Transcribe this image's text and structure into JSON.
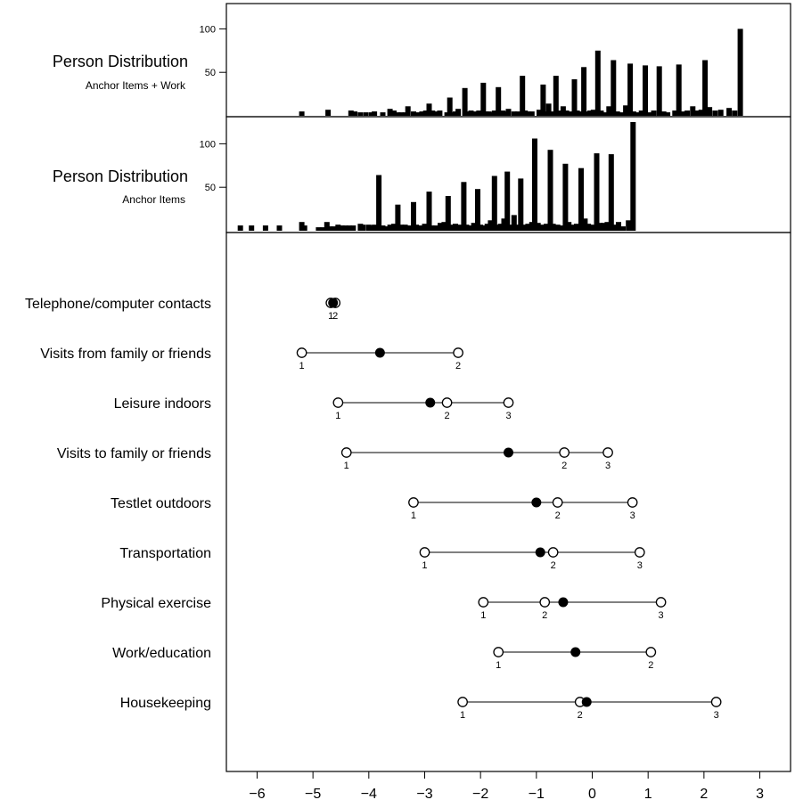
{
  "chart_data": [
    {
      "type": "bar",
      "title": "Person Distribution",
      "subtitle": "Anchor Items + Work",
      "ylim": [
        0,
        125
      ],
      "yticks": [
        50,
        100
      ],
      "series": [
        {
          "bars": [
            [
              -5.2,
              5
            ],
            [
              -4.73,
              7
            ],
            [
              -4.32,
              6
            ],
            [
              -4.25,
              5
            ],
            [
              -4.15,
              4
            ],
            [
              -4.05,
              4
            ],
            [
              -3.95,
              4
            ],
            [
              -3.9,
              5
            ],
            [
              -3.75,
              4
            ],
            [
              -3.62,
              8
            ],
            [
              -3.55,
              6
            ],
            [
              -3.48,
              4
            ],
            [
              -3.42,
              4
            ],
            [
              -3.35,
              4
            ],
            [
              -3.3,
              11
            ],
            [
              -3.2,
              5
            ],
            [
              -3.12,
              4
            ],
            [
              -3.05,
              5
            ],
            [
              -2.98,
              6
            ],
            [
              -2.92,
              14
            ],
            [
              -2.86,
              6
            ],
            [
              -2.8,
              5
            ],
            [
              -2.73,
              6
            ],
            [
              -2.6,
              4
            ],
            [
              -2.55,
              21
            ],
            [
              -2.5,
              4
            ],
            [
              -2.45,
              5
            ],
            [
              -2.4,
              8
            ],
            [
              -2.28,
              32
            ],
            [
              -2.22,
              5
            ],
            [
              -2.17,
              6
            ],
            [
              -2.1,
              5
            ],
            [
              -2.03,
              6
            ],
            [
              -1.95,
              38
            ],
            [
              -1.9,
              5
            ],
            [
              -1.85,
              5
            ],
            [
              -1.8,
              4
            ],
            [
              -1.75,
              6
            ],
            [
              -1.68,
              33
            ],
            [
              -1.6,
              6
            ],
            [
              -1.55,
              5
            ],
            [
              -1.5,
              8
            ],
            [
              -1.4,
              5
            ],
            [
              -1.33,
              5
            ],
            [
              -1.25,
              46
            ],
            [
              -1.2,
              6
            ],
            [
              -1.15,
              5
            ],
            [
              -1.08,
              5
            ],
            [
              -0.95,
              7
            ],
            [
              -0.88,
              36
            ],
            [
              -0.83,
              5
            ],
            [
              -0.78,
              14
            ],
            [
              -0.72,
              5
            ],
            [
              -0.65,
              46
            ],
            [
              -0.58,
              6
            ],
            [
              -0.52,
              11
            ],
            [
              -0.46,
              6
            ],
            [
              -0.4,
              5
            ],
            [
              -0.32,
              42
            ],
            [
              -0.27,
              6
            ],
            [
              -0.2,
              5
            ],
            [
              -0.15,
              56
            ],
            [
              -0.1,
              5
            ],
            [
              -0.04,
              6
            ],
            [
              0.02,
              7
            ],
            [
              0.1,
              75
            ],
            [
              0.16,
              6
            ],
            [
              0.22,
              4
            ],
            [
              0.3,
              11
            ],
            [
              0.38,
              64
            ],
            [
              0.45,
              5
            ],
            [
              0.52,
              4
            ],
            [
              0.6,
              12
            ],
            [
              0.68,
              60
            ],
            [
              0.74,
              5
            ],
            [
              0.8,
              4
            ],
            [
              0.88,
              6
            ],
            [
              0.95,
              58
            ],
            [
              1.02,
              4
            ],
            [
              1.1,
              6
            ],
            [
              1.2,
              57
            ],
            [
              1.28,
              5
            ],
            [
              1.35,
              4
            ],
            [
              1.48,
              6
            ],
            [
              1.55,
              59
            ],
            [
              1.62,
              5
            ],
            [
              1.7,
              6
            ],
            [
              1.8,
              11
            ],
            [
              1.88,
              6
            ],
            [
              1.95,
              7
            ],
            [
              2.02,
              64
            ],
            [
              2.1,
              10
            ],
            [
              2.2,
              6
            ],
            [
              2.3,
              7
            ],
            [
              2.45,
              9
            ],
            [
              2.55,
              6
            ],
            [
              2.65,
              100
            ]
          ]
        }
      ]
    },
    {
      "type": "bar",
      "title": "Person Distribution",
      "subtitle": "Anchor Items",
      "ylim": [
        0,
        125
      ],
      "yticks": [
        50,
        100
      ],
      "series": [
        {
          "bars": [
            [
              -6.3,
              6
            ],
            [
              -6.1,
              6
            ],
            [
              -5.85,
              6
            ],
            [
              -5.6,
              6
            ],
            [
              -5.2,
              10
            ],
            [
              -5.15,
              6
            ],
            [
              -4.9,
              4
            ],
            [
              -4.82,
              4
            ],
            [
              -4.75,
              10
            ],
            [
              -4.7,
              5
            ],
            [
              -4.62,
              5
            ],
            [
              -4.55,
              7
            ],
            [
              -4.48,
              6
            ],
            [
              -4.42,
              6
            ],
            [
              -4.35,
              6
            ],
            [
              -4.28,
              6
            ],
            [
              -4.15,
              8
            ],
            [
              -4.1,
              7
            ],
            [
              -4.0,
              7
            ],
            [
              -3.95,
              6
            ],
            [
              -3.9,
              7
            ],
            [
              -3.82,
              64
            ],
            [
              -3.75,
              6
            ],
            [
              -3.7,
              5
            ],
            [
              -3.62,
              7
            ],
            [
              -3.55,
              8
            ],
            [
              -3.48,
              30
            ],
            [
              -3.42,
              7
            ],
            [
              -3.35,
              7
            ],
            [
              -3.27,
              6
            ],
            [
              -3.2,
              33
            ],
            [
              -3.15,
              7
            ],
            [
              -3.08,
              6
            ],
            [
              -3.0,
              8
            ],
            [
              -2.92,
              45
            ],
            [
              -2.87,
              6
            ],
            [
              -2.8,
              6
            ],
            [
              -2.72,
              9
            ],
            [
              -2.65,
              10
            ],
            [
              -2.58,
              40
            ],
            [
              -2.52,
              7
            ],
            [
              -2.45,
              8
            ],
            [
              -2.38,
              7
            ],
            [
              -2.3,
              56
            ],
            [
              -2.25,
              7
            ],
            [
              -2.18,
              6
            ],
            [
              -2.12,
              9
            ],
            [
              -2.05,
              48
            ],
            [
              -2.0,
              7
            ],
            [
              -1.94,
              6
            ],
            [
              -1.88,
              8
            ],
            [
              -1.82,
              12
            ],
            [
              -1.75,
              63
            ],
            [
              -1.7,
              7
            ],
            [
              -1.64,
              8
            ],
            [
              -1.58,
              14
            ],
            [
              -1.52,
              68
            ],
            [
              -1.47,
              7
            ],
            [
              -1.4,
              18
            ],
            [
              -1.35,
              7
            ],
            [
              -1.28,
              60
            ],
            [
              -1.22,
              7
            ],
            [
              -1.15,
              8
            ],
            [
              -1.08,
              10
            ],
            [
              -1.03,
              106
            ],
            [
              -0.97,
              9
            ],
            [
              -0.9,
              7
            ],
            [
              -0.82,
              8
            ],
            [
              -0.75,
              93
            ],
            [
              -0.7,
              8
            ],
            [
              -0.62,
              7
            ],
            [
              -0.55,
              6
            ],
            [
              -0.48,
              77
            ],
            [
              -0.42,
              10
            ],
            [
              -0.36,
              7
            ],
            [
              -0.28,
              8
            ],
            [
              -0.2,
              72
            ],
            [
              -0.13,
              14
            ],
            [
              -0.07,
              8
            ],
            [
              0.0,
              7
            ],
            [
              0.08,
              89
            ],
            [
              0.14,
              9
            ],
            [
              0.2,
              9
            ],
            [
              0.27,
              10
            ],
            [
              0.34,
              88
            ],
            [
              0.4,
              7
            ],
            [
              0.47,
              10
            ],
            [
              0.55,
              5
            ],
            [
              0.65,
              12
            ],
            [
              0.73,
              125
            ]
          ]
        }
      ]
    },
    {
      "type": "scatter",
      "xlim": [
        -6.55,
        3.55
      ],
      "xticks": [
        -6,
        -5,
        -4,
        -3,
        -2,
        -1,
        0,
        1,
        2,
        3
      ],
      "xtick_labels": [
        "−6",
        "−5",
        "−4",
        "−3",
        "−2",
        "−1",
        "0",
        "1",
        "2",
        "3"
      ],
      "items": [
        {
          "name": "Telephone/computer contacts",
          "thresholds": [
            -4.68,
            -4.6
          ],
          "labels": [
            "1",
            "2"
          ],
          "mean": -4.64
        },
        {
          "name": "Visits from family or friends",
          "thresholds": [
            -5.2,
            -2.4
          ],
          "labels": [
            "1",
            "2"
          ],
          "mean": -3.8
        },
        {
          "name": "Leisure indoors",
          "thresholds": [
            -4.55,
            -2.6,
            -1.5
          ],
          "labels": [
            "1",
            "2",
            "3"
          ],
          "mean": -2.9
        },
        {
          "name": "Visits to family or friends",
          "thresholds": [
            -4.4,
            -0.5,
            0.28
          ],
          "labels": [
            "1",
            "2",
            "3"
          ],
          "mean": -1.5
        },
        {
          "name": "Testlet outdoors",
          "thresholds": [
            -3.2,
            -0.62,
            0.72
          ],
          "labels": [
            "1",
            "2",
            "3"
          ],
          "mean": -1.0
        },
        {
          "name": "Transportation",
          "thresholds": [
            -3.0,
            -0.7,
            0.85
          ],
          "labels": [
            "1",
            "2",
            "3"
          ],
          "mean": -0.93
        },
        {
          "name": "Physical exercise",
          "thresholds": [
            -1.95,
            -0.85,
            1.23
          ],
          "labels": [
            "1",
            "2",
            "3"
          ],
          "mean": -0.52
        },
        {
          "name": "Work/education",
          "thresholds": [
            -1.68,
            1.05
          ],
          "labels": [
            "1",
            "2"
          ],
          "mean": -0.3
        },
        {
          "name": "Housekeeping",
          "thresholds": [
            -2.32,
            -0.22,
            2.22
          ],
          "labels": [
            "1",
            "2",
            "3"
          ],
          "mean": -0.1
        }
      ]
    }
  ]
}
